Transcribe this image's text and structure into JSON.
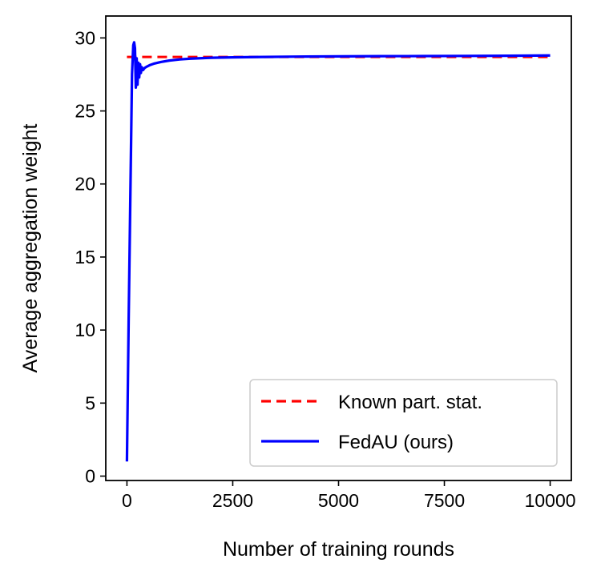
{
  "chart_data": {
    "type": "line",
    "title": "",
    "xlabel": "Number of training rounds",
    "ylabel": "Average aggregation weight",
    "xlim": [
      -500,
      10500
    ],
    "ylim": [
      -0.3,
      31.5
    ],
    "xticks": [
      0,
      2500,
      5000,
      7500,
      10000
    ],
    "xtick_labels": [
      "0",
      "2500",
      "5000",
      "7500",
      "10000"
    ],
    "yticks": [
      0,
      5,
      10,
      15,
      20,
      25,
      30
    ],
    "ytick_labels": [
      "0",
      "5",
      "10",
      "15",
      "20",
      "25",
      "30"
    ],
    "grid": false,
    "legend_position": "lower-right",
    "series": [
      {
        "name": "Known part. stat.",
        "color": "#ff0000",
        "style": "dashed",
        "x": [
          0,
          10000
        ],
        "y": [
          28.7,
          28.7
        ]
      },
      {
        "name": "FedAU (ours)",
        "color": "#0000ff",
        "style": "solid",
        "x": [
          0,
          40,
          80,
          120,
          150,
          170,
          190,
          210,
          230,
          250,
          270,
          290,
          310,
          330,
          350,
          380,
          420,
          480,
          550,
          650,
          800,
          1000,
          1250,
          1500,
          2000,
          2500,
          3000,
          4000,
          5000,
          6000,
          7000,
          8000,
          9000,
          10000
        ],
        "y": [
          1.0,
          10.5,
          19.0,
          27.5,
          29.5,
          29.7,
          29.3,
          26.6,
          28.6,
          26.8,
          28.3,
          27.3,
          28.2,
          27.6,
          28.0,
          27.8,
          27.95,
          28.05,
          28.15,
          28.25,
          28.35,
          28.45,
          28.53,
          28.58,
          28.64,
          28.67,
          28.69,
          28.72,
          28.74,
          28.75,
          28.76,
          28.77,
          28.78,
          28.8
        ]
      }
    ]
  }
}
